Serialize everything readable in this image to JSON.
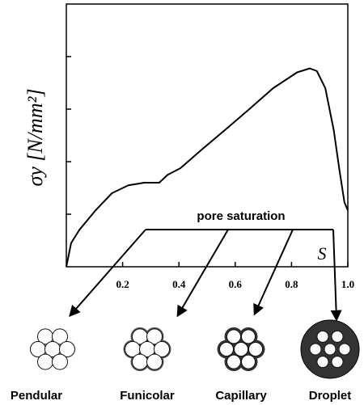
{
  "chart_data": {
    "type": "line",
    "x_label": "S",
    "y_label": "σy [N/mm²]",
    "annotation": "pore saturation",
    "regimes": [
      "Pendular",
      "Funicolar",
      "Capillary",
      "Droplet"
    ],
    "xlim": [
      0,
      1
    ],
    "ylim": [
      0,
      1
    ],
    "xticks": [
      0.2,
      0.4,
      0.6,
      0.8,
      {
        "value": 1,
        "label": "1.0"
      }
    ],
    "yticks": [
      0.2,
      0.4,
      0.6,
      0.8
    ],
    "series": [
      {
        "color": "#000000",
        "x": [
          0,
          0.017,
          0.046,
          0.104,
          0.162,
          0.22,
          0.277,
          0.33,
          0.36,
          0.405,
          0.48,
          0.563,
          0.65,
          0.735,
          0.82,
          0.865,
          0.89,
          0.92,
          0.95,
          0.97,
          0.988,
          1.0
        ],
        "values": [
          0,
          0.09,
          0.14,
          0.215,
          0.28,
          0.31,
          0.32,
          0.32,
          0.35,
          0.375,
          0.445,
          0.52,
          0.6,
          0.68,
          0.74,
          0.755,
          0.745,
          0.68,
          0.52,
          0.37,
          0.245,
          0.215
        ]
      }
    ]
  }
}
